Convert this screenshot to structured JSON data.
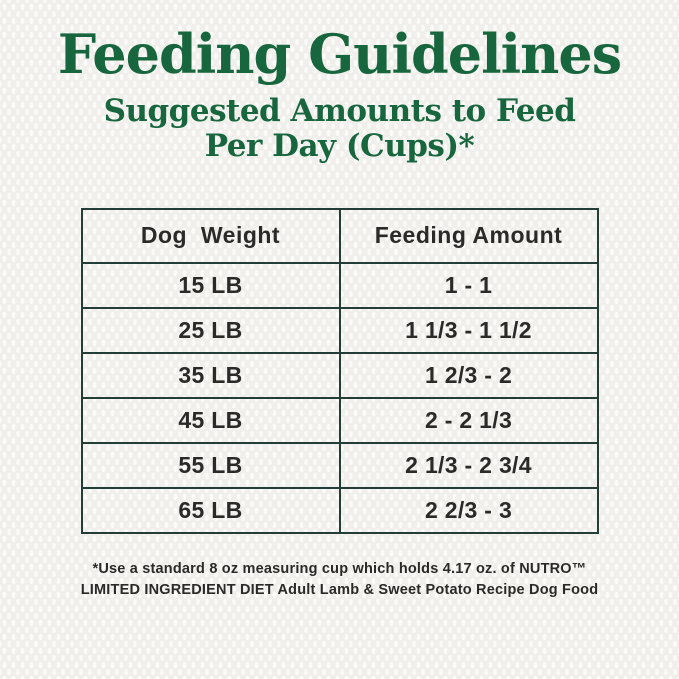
{
  "page": {
    "title": "Feeding Guidelines",
    "subtitle_line1": "Suggested Amounts to Feed",
    "subtitle_line2": "Per Day (Cups)*",
    "colors": {
      "title_green": "#17663e",
      "table_border": "#223e37",
      "text_dark": "#2b2a28",
      "background": "#f0efeb"
    }
  },
  "table": {
    "headers": [
      "Dog  Weight",
      "Feeding Amount"
    ],
    "rows": [
      {
        "weight": "15 LB",
        "amount": "1 - 1"
      },
      {
        "weight": "25 LB",
        "amount": "1 1/3 - 1 1/2"
      },
      {
        "weight": "35 LB",
        "amount": "1 2/3 - 2"
      },
      {
        "weight": "45 LB",
        "amount": "2 - 2 1/3"
      },
      {
        "weight": "55 LB",
        "amount": "2 1/3 - 2 3/4"
      },
      {
        "weight": "65 LB",
        "amount": "2 2/3 - 3"
      }
    ]
  },
  "footnote": {
    "line1": "*Use a standard 8 oz measuring cup which holds 4.17 oz. of NUTRO™",
    "line2": "LIMITED INGREDIENT DIET Adult Lamb & Sweet Potato Recipe Dog Food"
  }
}
